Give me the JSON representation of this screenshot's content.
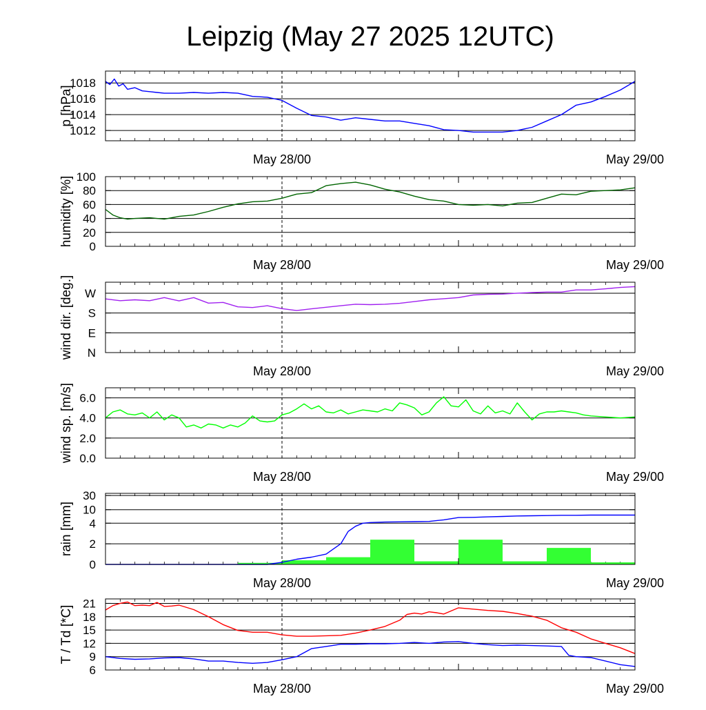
{
  "title": "Leipzig (May 27 2025 12UTC)",
  "x_range_hours": [
    0,
    36
  ],
  "x_tick_labels": [
    {
      "hour": 12,
      "label": "May 28/00"
    },
    {
      "hour": 36,
      "label": "May 29/00"
    }
  ],
  "chart_data": [
    {
      "id": "pressure",
      "type": "line",
      "ylabel": "p [hPa]",
      "ylim": [
        1010.7,
        1019.5
      ],
      "yticks": [
        1012,
        1014,
        1016,
        1018
      ],
      "ytick_labels": [
        "1012",
        "1014",
        "1016",
        "1018"
      ],
      "series": [
        {
          "color": "#0000ff",
          "x": [
            0,
            0.3,
            0.6,
            0.9,
            1.2,
            1.5,
            2,
            2.5,
            3,
            3.5,
            4,
            5,
            6,
            7,
            8,
            9,
            10,
            11,
            12,
            13,
            14,
            15,
            16,
            17,
            18,
            19,
            20,
            21,
            22,
            23,
            24,
            25,
            26,
            27,
            28,
            29,
            30,
            31,
            32,
            33,
            34,
            35,
            36
          ],
          "y": [
            1018.2,
            1017.8,
            1018.5,
            1017.6,
            1017.9,
            1017.2,
            1017.4,
            1017.0,
            1016.9,
            1016.8,
            1016.7,
            1016.7,
            1016.8,
            1016.7,
            1016.8,
            1016.7,
            1016.3,
            1016.2,
            1015.8,
            1014.8,
            1013.9,
            1013.7,
            1013.3,
            1013.6,
            1013.4,
            1013.2,
            1013.2,
            1012.9,
            1012.6,
            1012.1,
            1012.0,
            1011.8,
            1011.8,
            1011.8,
            1012.0,
            1012.4,
            1013.2,
            1014.0,
            1015.2,
            1015.6,
            1016.3,
            1017.1,
            1018.2
          ]
        }
      ]
    },
    {
      "id": "humidity",
      "type": "line",
      "ylabel": "humidity [%]",
      "ylim": [
        0,
        100
      ],
      "yticks": [
        0,
        20,
        40,
        60,
        80,
        100
      ],
      "ytick_labels": [
        "0",
        "20",
        "40",
        "60",
        "80",
        "100"
      ],
      "series": [
        {
          "color": "#006400",
          "x": [
            0,
            0.5,
            1,
            1.5,
            2,
            3,
            4,
            5,
            6,
            7,
            8,
            9,
            10,
            11,
            12,
            13,
            14,
            15,
            16,
            17,
            18,
            19,
            20,
            21,
            22,
            23,
            24,
            25,
            26,
            27,
            28,
            29,
            30,
            31,
            32,
            33,
            34,
            35,
            36
          ],
          "y": [
            53,
            45,
            41,
            39,
            40,
            41,
            39,
            43,
            45,
            50,
            56,
            61,
            64,
            65,
            69,
            75,
            77,
            87,
            90,
            92,
            88,
            82,
            78,
            72,
            67,
            65,
            60,
            59,
            60,
            58,
            62,
            63,
            69,
            75,
            74,
            79,
            80,
            81,
            84
          ]
        }
      ]
    },
    {
      "id": "wind_dir",
      "type": "line",
      "ylabel": "wind dir. [deg.]",
      "ylim": [
        0,
        320
      ],
      "yticks": [
        0,
        90,
        180,
        270
      ],
      "ytick_labels": [
        "N",
        "E",
        "S",
        "W"
      ],
      "series": [
        {
          "color": "#a020f0",
          "x": [
            0,
            1,
            2,
            3,
            4,
            5,
            6,
            7,
            8,
            9,
            10,
            11,
            12,
            13,
            14,
            15,
            16,
            17,
            18,
            19,
            20,
            21,
            22,
            23,
            24,
            25,
            26,
            27,
            28,
            29,
            30,
            31,
            32,
            33,
            34,
            35,
            36
          ],
          "y": [
            244,
            236,
            240,
            236,
            250,
            235,
            250,
            225,
            228,
            208,
            205,
            213,
            200,
            191,
            199,
            206,
            213,
            220,
            218,
            220,
            224,
            232,
            240,
            245,
            250,
            262,
            265,
            266,
            270,
            273,
            275,
            275,
            285,
            285,
            290,
            296,
            300
          ]
        }
      ]
    },
    {
      "id": "wind_speed",
      "type": "line",
      "ylabel": "wind sp. [m/s]",
      "ylim": [
        0,
        7.0
      ],
      "yticks": [
        0,
        2,
        4,
        6
      ],
      "ytick_labels": [
        "0.0",
        "2.0",
        "4.0",
        "6.0"
      ],
      "series": [
        {
          "color": "#00ff00",
          "x": [
            0,
            0.5,
            1,
            1.5,
            2,
            2.5,
            3,
            3.5,
            4,
            4.5,
            5,
            5.5,
            6,
            6.5,
            7,
            7.5,
            8,
            8.5,
            9,
            9.5,
            10,
            10.5,
            11,
            11.5,
            12,
            12.5,
            13,
            13.5,
            14,
            14.5,
            15,
            15.5,
            16,
            16.5,
            17,
            17.5,
            18,
            18.5,
            19,
            19.5,
            20,
            20.5,
            21,
            21.5,
            22,
            22.5,
            23,
            23.5,
            24,
            24.5,
            25,
            25.5,
            26,
            26.5,
            27,
            27.5,
            28,
            28.5,
            29,
            29.5,
            30,
            30.5,
            31,
            31.5,
            32,
            32.5,
            33,
            34,
            35,
            36
          ],
          "y": [
            4.0,
            4.6,
            4.8,
            4.4,
            4.3,
            4.5,
            4.0,
            4.6,
            3.8,
            4.3,
            4.0,
            3.1,
            3.3,
            3.0,
            3.4,
            3.3,
            3.0,
            3.3,
            3.1,
            3.5,
            4.2,
            3.7,
            3.6,
            3.7,
            4.3,
            4.5,
            4.9,
            5.4,
            4.9,
            5.2,
            4.6,
            4.5,
            4.8,
            4.4,
            4.6,
            4.8,
            4.7,
            4.6,
            4.9,
            4.7,
            5.5,
            5.3,
            5.0,
            4.3,
            4.6,
            5.5,
            6.1,
            5.2,
            5.1,
            5.8,
            4.7,
            4.4,
            5.2,
            4.5,
            4.7,
            4.4,
            5.5,
            4.6,
            3.8,
            4.4,
            4.6,
            4.6,
            4.7,
            4.6,
            4.5,
            4.3,
            4.2,
            4.1,
            4.0,
            4.1
          ]
        }
      ]
    },
    {
      "id": "rain",
      "type": "bar+line",
      "ylabel": "rain [mm]",
      "ylim": [
        0,
        30
      ],
      "yticks": [
        0,
        2,
        4,
        10,
        30
      ],
      "ytick_labels": [
        "0",
        "2",
        "4",
        "10",
        "30"
      ],
      "scale": "nonlinear",
      "bars": {
        "color": "#33ff33",
        "bins": [
          [
            9,
            12
          ],
          [
            12,
            15
          ],
          [
            15,
            18
          ],
          [
            18,
            21
          ],
          [
            21,
            24
          ],
          [
            24,
            27
          ],
          [
            27,
            30
          ],
          [
            30,
            33
          ],
          [
            33,
            36
          ]
        ],
        "values": [
          0.15,
          0.4,
          0.7,
          2.4,
          0.3,
          2.4,
          0.3,
          1.6,
          0.2
        ]
      },
      "series": [
        {
          "color": "#0000ff",
          "x": [
            0,
            11,
            12,
            13,
            14,
            15,
            16,
            16.5,
            17,
            17.5,
            18,
            19,
            20,
            21,
            22,
            23,
            24,
            25,
            26,
            27,
            28,
            29,
            30,
            31,
            32,
            33,
            34,
            35,
            36
          ],
          "y": [
            0,
            0,
            0.2,
            0.5,
            0.7,
            1.0,
            2.0,
            3.2,
            3.7,
            4.0,
            4.3,
            4.5,
            4.6,
            4.7,
            4.8,
            5.5,
            6.5,
            6.6,
            6.8,
            7.0,
            7.2,
            7.3,
            7.4,
            7.5,
            7.5,
            7.6,
            7.6,
            7.6,
            7.6
          ]
        }
      ]
    },
    {
      "id": "temperature",
      "type": "line",
      "ylabel": "T / Td [*C]",
      "ylim": [
        6,
        22
      ],
      "yticks": [
        6,
        9,
        12,
        15,
        18,
        21
      ],
      "ytick_labels": [
        "6",
        "9",
        "12",
        "15",
        "18",
        "21"
      ],
      "series": [
        {
          "color": "#ff0000",
          "x": [
            0,
            0.5,
            1,
            1.5,
            2,
            2.5,
            3,
            3.5,
            4,
            4.5,
            5,
            6,
            7,
            8,
            9,
            10,
            11,
            12,
            13,
            14,
            15,
            16,
            17,
            18,
            19,
            20,
            20.5,
            21,
            21.5,
            22,
            22.5,
            23,
            24,
            25,
            26,
            27,
            28,
            29,
            30,
            31,
            32,
            33,
            34,
            35,
            36
          ],
          "y": [
            19.5,
            20.5,
            21.0,
            21.3,
            20.5,
            20.6,
            20.5,
            21.2,
            20.3,
            20.4,
            20.6,
            19.6,
            18.0,
            16.2,
            14.9,
            14.5,
            14.5,
            13.9,
            13.6,
            13.6,
            13.7,
            13.8,
            14.3,
            15.0,
            15.8,
            17.2,
            18.5,
            18.8,
            18.6,
            19.1,
            18.9,
            18.6,
            20.0,
            19.7,
            19.4,
            19.2,
            18.7,
            18.1,
            17.2,
            15.5,
            14.5,
            13.0,
            12.0,
            11.0,
            9.7
          ]
        },
        {
          "color": "#0000ff",
          "x": [
            0,
            1,
            2,
            3,
            4,
            5,
            6,
            7,
            8,
            9,
            10,
            11,
            12,
            13,
            14,
            15,
            16,
            17,
            18,
            19,
            20,
            21,
            22,
            23,
            24,
            25,
            26,
            27,
            28,
            29,
            30,
            31,
            31.5,
            32,
            33,
            34,
            35,
            36
          ],
          "y": [
            9.0,
            8.6,
            8.4,
            8.5,
            8.7,
            8.8,
            8.5,
            8.0,
            8.0,
            7.7,
            7.5,
            7.7,
            8.3,
            9.0,
            10.8,
            11.3,
            11.8,
            11.8,
            11.9,
            11.9,
            12.0,
            12.2,
            12.0,
            12.3,
            12.4,
            12.0,
            11.7,
            11.5,
            11.6,
            11.5,
            11.4,
            11.3,
            9.3,
            9.0,
            8.8,
            8.0,
            7.2,
            6.8
          ]
        }
      ]
    }
  ]
}
